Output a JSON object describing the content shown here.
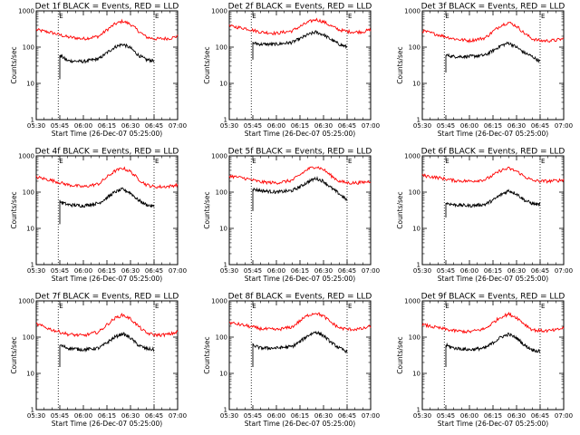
{
  "chart_data": [
    {
      "type": "line",
      "title": "Det 1f BLACK = Events, RED = LLD",
      "xlabel": "Start Time (26-Dec-07 05:25:00)",
      "ylabel": "Counts/sec",
      "x_ticks": [
        "05:30",
        "05:45",
        "06:00",
        "06:15",
        "06:30",
        "06:45",
        "07:00"
      ],
      "y_ticks": [
        "1",
        "10",
        "100",
        "1000"
      ],
      "y_scale": "log",
      "ylim": [
        1,
        1000
      ],
      "xlim": [
        "05:30",
        "07:00"
      ],
      "markers": [
        "05:44",
        "06:45"
      ],
      "marker_labels": [
        "E",
        "E"
      ],
      "series": [
        {
          "color": "#ff0000",
          "start": "05:30",
          "end": "07:00",
          "x": [
            "05:30",
            "05:40",
            "05:50",
            "06:00",
            "06:10",
            "06:15",
            "06:20",
            "06:25",
            "06:30",
            "06:35",
            "06:40",
            "06:45",
            "06:50",
            "06:55",
            "07:00"
          ],
          "y": [
            300,
            250,
            190,
            170,
            200,
            300,
            430,
            520,
            430,
            280,
            190,
            170,
            170,
            175,
            200
          ]
        },
        {
          "color": "#000000",
          "start": "05:45",
          "end": "06:45",
          "drop": 13,
          "x": [
            "05:45",
            "05:50",
            "06:00",
            "06:10",
            "06:15",
            "06:20",
            "06:25",
            "06:30",
            "06:35",
            "06:40",
            "06:45"
          ],
          "y": [
            60,
            42,
            40,
            48,
            70,
            100,
            120,
            95,
            60,
            45,
            42
          ]
        }
      ]
    },
    {
      "type": "line",
      "title": "Det 2f BLACK = Events, RED = LLD",
      "xlabel": "Start Time (26-Dec-07 05:25:00)",
      "ylabel": "Counts/sec",
      "x_ticks": [
        "05:30",
        "05:45",
        "06:00",
        "06:15",
        "06:30",
        "06:45",
        "07:00"
      ],
      "y_ticks": [
        "1",
        "10",
        "100",
        "1000"
      ],
      "y_scale": "log",
      "ylim": [
        1,
        1000
      ],
      "xlim": [
        "05:30",
        "07:00"
      ],
      "markers": [
        "05:44",
        "06:45"
      ],
      "marker_labels": [
        "E",
        "E"
      ],
      "series": [
        {
          "color": "#ff0000",
          "start": "05:30",
          "end": "07:00",
          "x": [
            "05:30",
            "05:40",
            "05:50",
            "06:00",
            "06:10",
            "06:15",
            "06:20",
            "06:25",
            "06:30",
            "06:35",
            "06:40",
            "06:45",
            "06:50",
            "06:55",
            "07:00"
          ],
          "y": [
            380,
            330,
            260,
            240,
            280,
            370,
            480,
            580,
            500,
            380,
            300,
            270,
            260,
            265,
            300
          ]
        },
        {
          "color": "#000000",
          "start": "05:45",
          "end": "06:45",
          "drop": 45,
          "x": [
            "05:45",
            "05:50",
            "06:00",
            "06:10",
            "06:15",
            "06:20",
            "06:25",
            "06:30",
            "06:35",
            "06:40",
            "06:45"
          ],
          "y": [
            130,
            120,
            120,
            135,
            170,
            220,
            260,
            220,
            160,
            120,
            100
          ]
        }
      ]
    },
    {
      "type": "line",
      "title": "Det 3f BLACK = Events, RED = LLD",
      "xlabel": "Start Time (26-Dec-07 05:25:00)",
      "ylabel": "Counts/sec",
      "x_ticks": [
        "05:30",
        "05:45",
        "06:00",
        "06:15",
        "06:30",
        "06:45",
        "07:00"
      ],
      "y_ticks": [
        "1",
        "10",
        "100",
        "1000"
      ],
      "y_scale": "log",
      "ylim": [
        1,
        1000
      ],
      "xlim": [
        "05:30",
        "07:00"
      ],
      "markers": [
        "05:44",
        "06:45"
      ],
      "marker_labels": [
        "E",
        "E"
      ],
      "series": [
        {
          "color": "#ff0000",
          "start": "05:30",
          "end": "07:00",
          "x": [
            "05:30",
            "05:40",
            "05:50",
            "06:00",
            "06:10",
            "06:15",
            "06:20",
            "06:25",
            "06:30",
            "06:35",
            "06:40",
            "06:45",
            "06:50",
            "06:55",
            "07:00"
          ],
          "y": [
            280,
            220,
            170,
            150,
            180,
            270,
            400,
            480,
            380,
            240,
            170,
            150,
            150,
            155,
            170
          ]
        },
        {
          "color": "#000000",
          "start": "05:45",
          "end": "06:45",
          "drop": 20,
          "x": [
            "05:45",
            "05:50",
            "06:00",
            "06:10",
            "06:15",
            "06:20",
            "06:25",
            "06:30",
            "06:35",
            "06:40",
            "06:45"
          ],
          "y": [
            60,
            55,
            55,
            60,
            80,
            110,
            130,
            100,
            70,
            55,
            40
          ]
        }
      ]
    },
    {
      "type": "line",
      "title": "Det 4f BLACK = Events, RED = LLD",
      "xlabel": "Start Time (26-Dec-07 05:25:00)",
      "ylabel": "Counts/sec",
      "x_ticks": [
        "05:30",
        "05:45",
        "06:00",
        "06:15",
        "06:30",
        "06:45",
        "07:00"
      ],
      "y_ticks": [
        "1",
        "10",
        "100",
        "1000"
      ],
      "y_scale": "log",
      "ylim": [
        1,
        1000
      ],
      "xlim": [
        "05:30",
        "07:00"
      ],
      "markers": [
        "05:44",
        "06:45"
      ],
      "marker_labels": [
        "E",
        "E"
      ],
      "series": [
        {
          "color": "#ff0000",
          "start": "05:30",
          "end": "07:00",
          "x": [
            "05:30",
            "05:40",
            "05:50",
            "06:00",
            "06:10",
            "06:15",
            "06:20",
            "06:25",
            "06:30",
            "06:35",
            "06:40",
            "06:45",
            "06:50",
            "06:55",
            "07:00"
          ],
          "y": [
            260,
            210,
            160,
            140,
            170,
            260,
            380,
            460,
            370,
            230,
            160,
            140,
            140,
            145,
            160
          ]
        },
        {
          "color": "#000000",
          "start": "05:45",
          "end": "06:45",
          "drop": 13,
          "x": [
            "05:45",
            "05:50",
            "06:00",
            "06:10",
            "06:15",
            "06:20",
            "06:25",
            "06:30",
            "06:35",
            "06:40",
            "06:45"
          ],
          "y": [
            55,
            45,
            42,
            50,
            70,
            100,
            120,
            95,
            60,
            45,
            40
          ]
        }
      ]
    },
    {
      "type": "line",
      "title": "Det 5f BLACK = Events, RED = LLD",
      "xlabel": "Start Time (26-Dec-07 05:25:00)",
      "ylabel": "Counts/sec",
      "x_ticks": [
        "05:30",
        "05:45",
        "06:00",
        "06:15",
        "06:30",
        "06:45",
        "07:00"
      ],
      "y_ticks": [
        "1",
        "10",
        "100",
        "1000"
      ],
      "y_scale": "log",
      "ylim": [
        1,
        1000
      ],
      "xlim": [
        "05:30",
        "07:00"
      ],
      "markers": [
        "05:44",
        "06:45"
      ],
      "marker_labels": [
        "E",
        "E"
      ],
      "series": [
        {
          "color": "#ff0000",
          "start": "05:30",
          "end": "07:00",
          "x": [
            "05:30",
            "05:40",
            "05:50",
            "06:00",
            "06:10",
            "06:15",
            "06:20",
            "06:25",
            "06:30",
            "06:35",
            "06:40",
            "06:45",
            "06:50",
            "06:55",
            "07:00"
          ],
          "y": [
            280,
            240,
            190,
            180,
            210,
            300,
            430,
            510,
            420,
            280,
            200,
            180,
            180,
            185,
            200
          ]
        },
        {
          "color": "#000000",
          "start": "05:45",
          "end": "06:45",
          "drop": 30,
          "x": [
            "05:45",
            "05:50",
            "06:00",
            "06:10",
            "06:15",
            "06:20",
            "06:25",
            "06:30",
            "06:35",
            "06:40",
            "06:45"
          ],
          "y": [
            120,
            110,
            100,
            110,
            140,
            190,
            240,
            200,
            130,
            90,
            60
          ]
        }
      ]
    },
    {
      "type": "line",
      "title": "Det 6f BLACK = Events, RED = LLD",
      "xlabel": "Start Time (26-Dec-07 05:25:00)",
      "ylabel": "Counts/sec",
      "x_ticks": [
        "05:30",
        "05:45",
        "06:00",
        "06:15",
        "06:30",
        "06:45",
        "07:00"
      ],
      "y_ticks": [
        "1",
        "10",
        "100",
        "1000"
      ],
      "y_scale": "log",
      "ylim": [
        1,
        1000
      ],
      "xlim": [
        "05:30",
        "07:00"
      ],
      "markers": [
        "05:44",
        "06:45"
      ],
      "marker_labels": [
        "E",
        "E"
      ],
      "series": [
        {
          "color": "#ff0000",
          "start": "05:30",
          "end": "07:00",
          "x": [
            "05:30",
            "05:40",
            "05:50",
            "06:00",
            "06:10",
            "06:15",
            "06:20",
            "06:25",
            "06:30",
            "06:35",
            "06:40",
            "06:45",
            "06:50",
            "06:55",
            "07:00"
          ],
          "y": [
            290,
            250,
            210,
            200,
            220,
            290,
            400,
            450,
            380,
            270,
            210,
            200,
            200,
            205,
            220
          ]
        },
        {
          "color": "#000000",
          "start": "05:45",
          "end": "06:45",
          "drop": 20,
          "x": [
            "05:45",
            "05:50",
            "06:00",
            "06:10",
            "06:15",
            "06:20",
            "06:25",
            "06:30",
            "06:35",
            "06:40",
            "06:45"
          ],
          "y": [
            50,
            45,
            42,
            46,
            60,
            85,
            110,
            90,
            60,
            48,
            45
          ]
        }
      ]
    },
    {
      "type": "line",
      "title": "Det 7f BLACK = Events, RED = LLD",
      "xlabel": "Start Time (26-Dec-07 05:25:00)",
      "ylabel": "Counts/sec",
      "x_ticks": [
        "05:30",
        "05:45",
        "06:00",
        "06:15",
        "06:30",
        "06:45",
        "07:00"
      ],
      "y_ticks": [
        "1",
        "10",
        "100",
        "1000"
      ],
      "y_scale": "log",
      "ylim": [
        1,
        1000
      ],
      "xlim": [
        "05:30",
        "07:00"
      ],
      "markers": [
        "05:44",
        "06:45"
      ],
      "marker_labels": [
        "E",
        "E"
      ],
      "series": [
        {
          "color": "#ff0000",
          "start": "05:30",
          "end": "07:00",
          "x": [
            "05:30",
            "05:40",
            "05:50",
            "06:00",
            "06:10",
            "06:15",
            "06:20",
            "06:25",
            "06:30",
            "06:35",
            "06:40",
            "06:45",
            "06:50",
            "06:55",
            "07:00"
          ],
          "y": [
            230,
            160,
            120,
            110,
            140,
            220,
            330,
            410,
            320,
            200,
            130,
            115,
            115,
            120,
            140
          ]
        },
        {
          "color": "#000000",
          "start": "05:45",
          "end": "06:45",
          "drop": 15,
          "x": [
            "05:45",
            "05:50",
            "06:00",
            "06:10",
            "06:15",
            "06:20",
            "06:25",
            "06:30",
            "06:35",
            "06:40",
            "06:45"
          ],
          "y": [
            60,
            50,
            45,
            50,
            70,
            100,
            125,
            95,
            60,
            48,
            45
          ]
        }
      ]
    },
    {
      "type": "line",
      "title": "Det 8f BLACK = Events, RED = LLD",
      "xlabel": "Start Time (26-Dec-07 05:25:00)",
      "ylabel": "Counts/sec",
      "x_ticks": [
        "05:30",
        "05:45",
        "06:00",
        "06:15",
        "06:30",
        "06:45",
        "07:00"
      ],
      "y_ticks": [
        "1",
        "10",
        "100",
        "1000"
      ],
      "y_scale": "log",
      "ylim": [
        1,
        1000
      ],
      "xlim": [
        "05:30",
        "07:00"
      ],
      "markers": [
        "05:44",
        "06:45"
      ],
      "marker_labels": [
        "E",
        "E"
      ],
      "series": [
        {
          "color": "#ff0000",
          "start": "05:30",
          "end": "07:00",
          "x": [
            "05:30",
            "05:40",
            "05:50",
            "06:00",
            "06:10",
            "06:15",
            "06:20",
            "06:25",
            "06:30",
            "06:35",
            "06:40",
            "06:45",
            "06:50",
            "06:55",
            "07:00"
          ],
          "y": [
            250,
            210,
            170,
            160,
            190,
            280,
            400,
            470,
            380,
            250,
            180,
            165,
            165,
            170,
            200
          ]
        },
        {
          "color": "#000000",
          "start": "05:45",
          "end": "06:45",
          "drop": 15,
          "x": [
            "05:45",
            "05:50",
            "06:00",
            "06:10",
            "06:15",
            "06:20",
            "06:25",
            "06:30",
            "06:35",
            "06:40",
            "06:45"
          ],
          "y": [
            60,
            50,
            50,
            55,
            75,
            110,
            140,
            110,
            70,
            50,
            40
          ]
        }
      ]
    },
    {
      "type": "line",
      "title": "Det 9f BLACK = Events, RED = LLD",
      "xlabel": "Start Time (26-Dec-07 05:25:00)",
      "ylabel": "Counts/sec",
      "x_ticks": [
        "05:30",
        "05:45",
        "06:00",
        "06:15",
        "06:30",
        "06:45",
        "07:00"
      ],
      "y_ticks": [
        "1",
        "10",
        "100",
        "1000"
      ],
      "y_scale": "log",
      "ylim": [
        1,
        1000
      ],
      "xlim": [
        "05:30",
        "07:00"
      ],
      "markers": [
        "05:44",
        "06:45"
      ],
      "marker_labels": [
        "E",
        "E"
      ],
      "series": [
        {
          "color": "#ff0000",
          "start": "05:30",
          "end": "07:00",
          "x": [
            "05:30",
            "05:40",
            "05:50",
            "06:00",
            "06:10",
            "06:15",
            "06:20",
            "06:25",
            "06:30",
            "06:35",
            "06:40",
            "06:45",
            "06:50",
            "06:55",
            "07:00"
          ],
          "y": [
            220,
            180,
            150,
            140,
            170,
            250,
            360,
            430,
            350,
            230,
            160,
            150,
            150,
            155,
            180
          ]
        },
        {
          "color": "#000000",
          "start": "05:45",
          "end": "06:45",
          "drop": 15,
          "x": [
            "05:45",
            "05:50",
            "06:00",
            "06:10",
            "06:15",
            "06:20",
            "06:25",
            "06:30",
            "06:35",
            "06:40",
            "06:45"
          ],
          "y": [
            60,
            50,
            45,
            50,
            70,
            100,
            120,
            95,
            60,
            45,
            40
          ]
        }
      ]
    }
  ]
}
